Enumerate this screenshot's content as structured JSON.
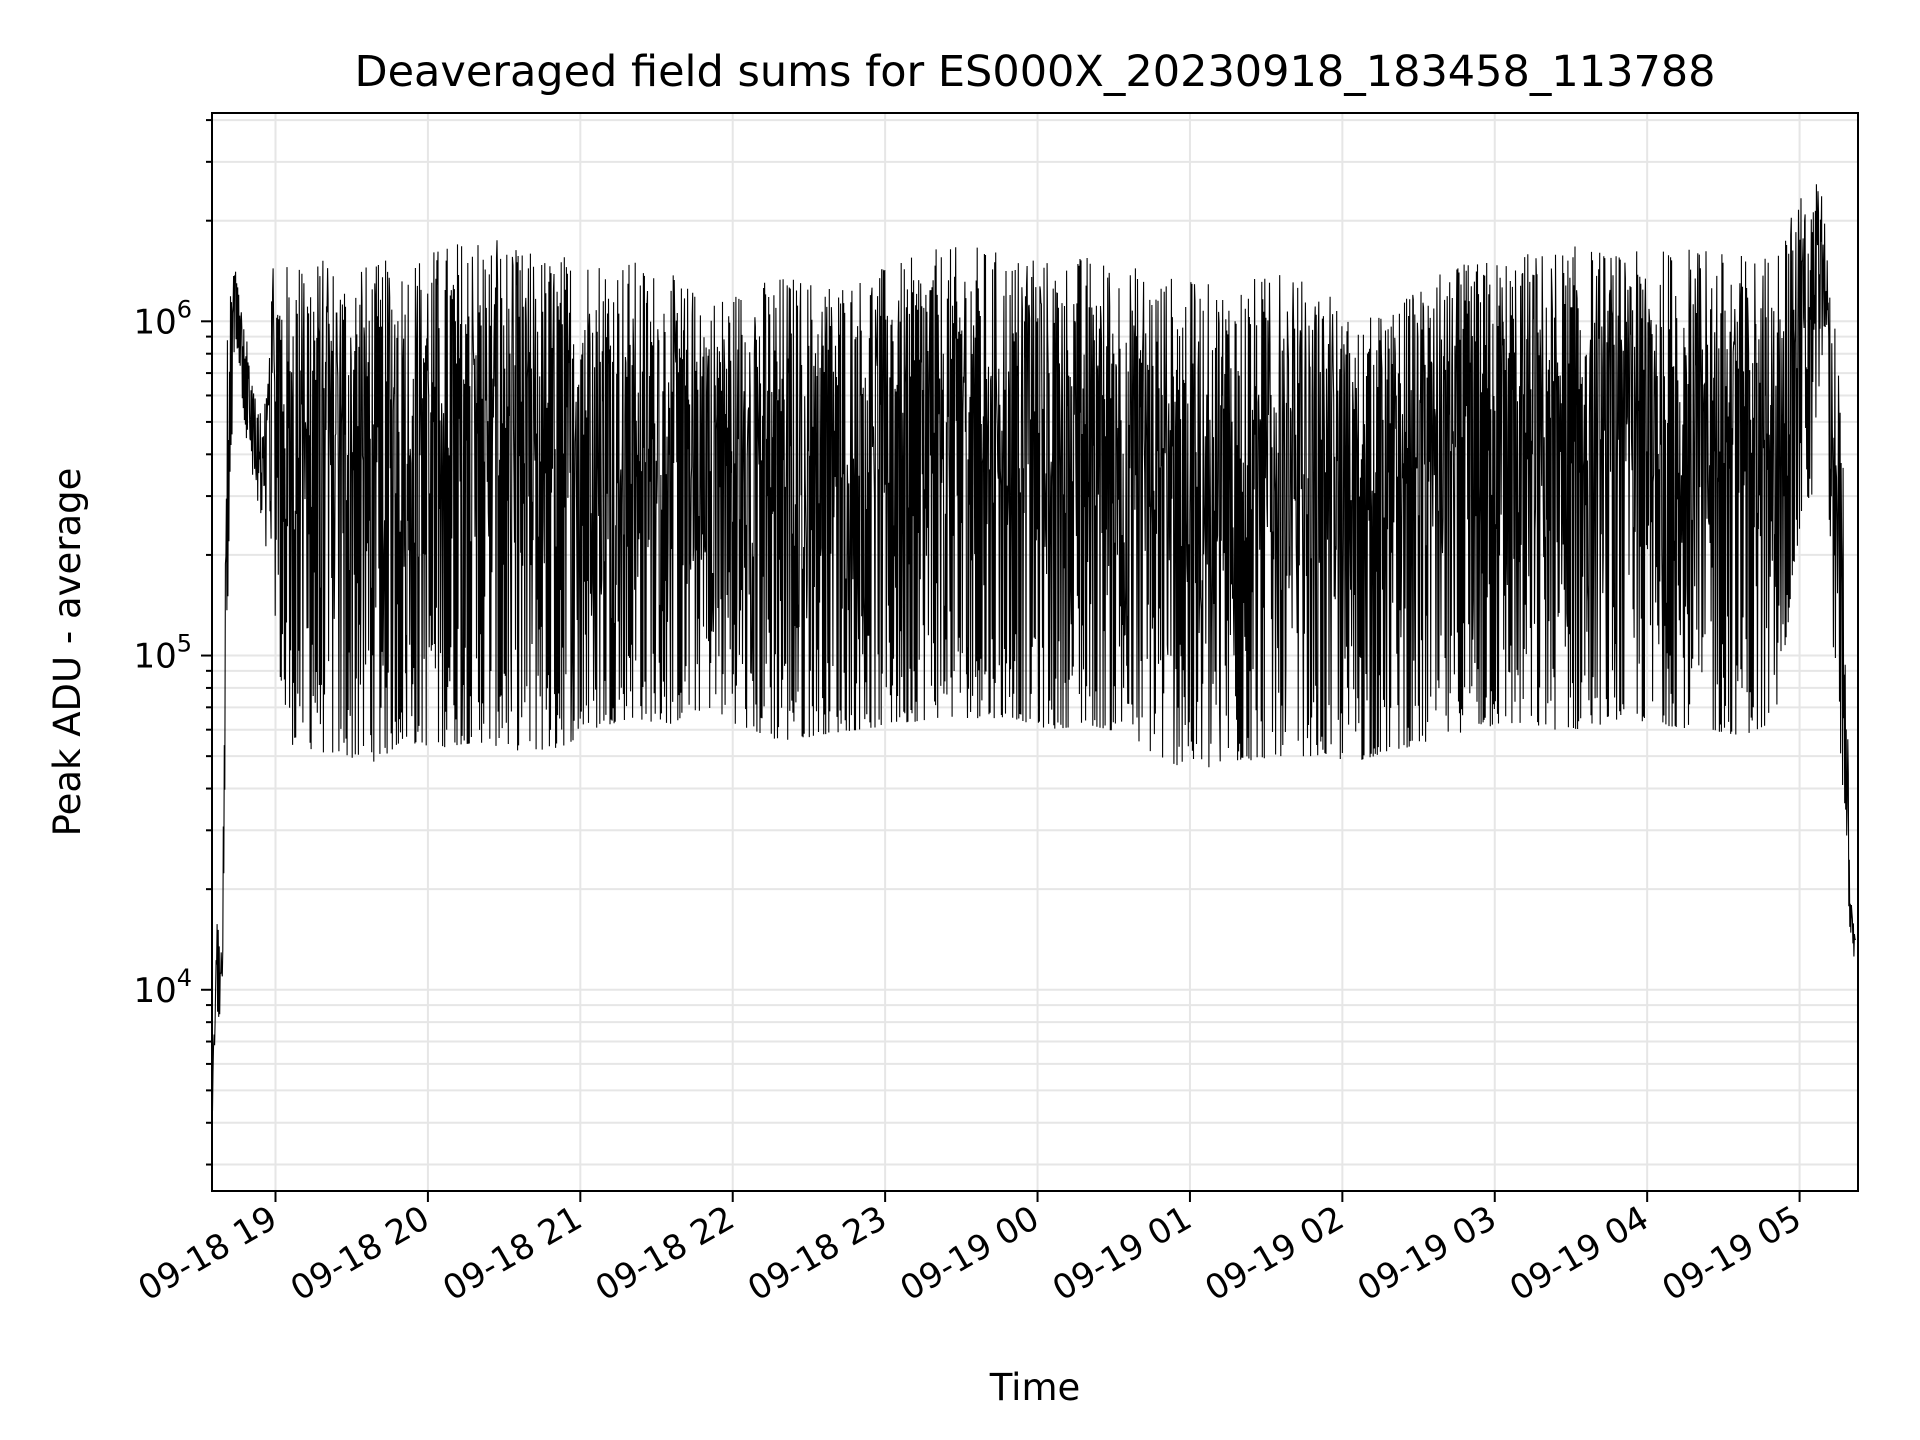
{
  "chart_data": {
    "type": "line",
    "title": "Deaveraged field sums for ES000X_20230918_183458_113788",
    "xlabel": "Time",
    "ylabel": "Peak ADU - average",
    "yscale": "log",
    "ylim": [
      2500,
      4200000
    ],
    "y_ticks": [
      {
        "value": 10000,
        "base": "10",
        "exp": "4"
      },
      {
        "value": 100000,
        "base": "10",
        "exp": "5"
      },
      {
        "value": 1000000,
        "base": "10",
        "exp": "6"
      }
    ],
    "xlim": [
      "2023-09-18 18:35",
      "2023-09-19 05:23"
    ],
    "x_ticks": [
      {
        "time": "2023-09-18 19:00",
        "label": "09-18 19"
      },
      {
        "time": "2023-09-18 20:00",
        "label": "09-18 20"
      },
      {
        "time": "2023-09-18 21:00",
        "label": "09-18 21"
      },
      {
        "time": "2023-09-18 22:00",
        "label": "09-18 22"
      },
      {
        "time": "2023-09-18 23:00",
        "label": "09-18 23"
      },
      {
        "time": "2023-09-19 00:00",
        "label": "09-19 00"
      },
      {
        "time": "2023-09-19 01:00",
        "label": "09-19 01"
      },
      {
        "time": "2023-09-19 02:00",
        "label": "09-19 02"
      },
      {
        "time": "2023-09-19 03:00",
        "label": "09-19 03"
      },
      {
        "time": "2023-09-19 04:00",
        "label": "09-19 04"
      },
      {
        "time": "2023-09-19 05:00",
        "label": "09-19 05"
      }
    ],
    "grid": true,
    "line_color": "#000000",
    "grid_color": "#e6e6e6",
    "series": [
      {
        "x": [
          "2023-09-18 18:35",
          "2023-09-18 18:37",
          "2023-09-18 18:39",
          "2023-09-18 18:41",
          "2023-09-18 18:44",
          "2023-09-18 18:46",
          "2023-09-18 18:49",
          "2023-09-18 18:52",
          "2023-09-18 18:55",
          "2023-09-18 18:58",
          "2023-09-18 19:04",
          "2023-09-18 19:08",
          "2023-09-18 19:15",
          "2023-09-18 19:25",
          "2023-09-18 19:40",
          "2023-09-18 19:50",
          "2023-09-18 20:05",
          "2023-09-18 20:20",
          "2023-09-18 20:35",
          "2023-09-18 20:50",
          "2023-09-18 21:05",
          "2023-09-18 21:20",
          "2023-09-18 21:35",
          "2023-09-18 21:50",
          "2023-09-18 22:05",
          "2023-09-18 22:20",
          "2023-09-18 22:35",
          "2023-09-18 22:50",
          "2023-09-18 23:05",
          "2023-09-18 23:20",
          "2023-09-18 23:35",
          "2023-09-18 23:50",
          "2023-09-19 00:05",
          "2023-09-19 00:20",
          "2023-09-19 00:35",
          "2023-09-19 00:50",
          "2023-09-19 01:05",
          "2023-09-19 01:20",
          "2023-09-19 01:35",
          "2023-09-19 01:50",
          "2023-09-19 02:05",
          "2023-09-19 02:20",
          "2023-09-19 02:35",
          "2023-09-19 02:50",
          "2023-09-19 03:05",
          "2023-09-19 03:20",
          "2023-09-19 03:35",
          "2023-09-19 03:50",
          "2023-09-19 04:05",
          "2023-09-19 04:20",
          "2023-09-19 04:35",
          "2023-09-19 04:50",
          "2023-09-19 05:02",
          "2023-09-19 05:05",
          "2023-09-19 05:07",
          "2023-09-19 05:10",
          "2023-09-19 05:13",
          "2023-09-19 05:16",
          "2023-09-19 05:18",
          "2023-09-19 05:20",
          "2023-09-19 05:22"
        ],
        "y_max": [
          4500,
          17000,
          12500,
          1000000,
          1550000,
          1200000,
          900000,
          600000,
          500000,
          1450000,
          1500000,
          1550000,
          1600000,
          1500000,
          1500000,
          1600000,
          1700000,
          1900000,
          1650000,
          1600000,
          1650000,
          1550000,
          1400000,
          1200000,
          1300000,
          1400000,
          1350000,
          1400000,
          1500000,
          1650000,
          1700000,
          1600000,
          1550000,
          1600000,
          1500000,
          1400000,
          1300000,
          1350000,
          1400000,
          1300000,
          1000000,
          1100000,
          1400000,
          1500000,
          1600000,
          1650000,
          1700000,
          1600000,
          1650000,
          1700000,
          1600000,
          1650000,
          2500000,
          2100000,
          3000000,
          2000000,
          1200000,
          900000,
          200000,
          20000,
          15000
        ],
        "y_min": [
          4000,
          8000,
          8500,
          120000,
          950000,
          700000,
          400000,
          300000,
          200000,
          200000,
          52000,
          55000,
          52000,
          50000,
          48000,
          55000,
          53000,
          55000,
          52000,
          52000,
          60000,
          65000,
          62000,
          70000,
          60000,
          55000,
          58000,
          60000,
          62000,
          65000,
          65000,
          65000,
          60000,
          62000,
          58000,
          48000,
          45000,
          48000,
          50000,
          50000,
          48000,
          52000,
          55000,
          60000,
          62000,
          60000,
          60000,
          65000,
          62000,
          60000,
          58000,
          60000,
          300000,
          280000,
          600000,
          800000,
          100000,
          50000,
          30000,
          14000,
          12000
        ]
      }
    ]
  }
}
